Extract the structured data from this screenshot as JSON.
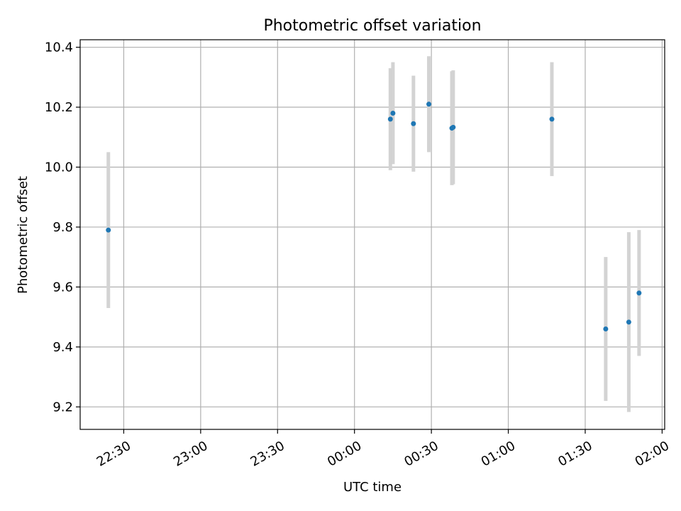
{
  "chart_data": {
    "type": "scatter",
    "title": "Photometric offset variation",
    "xlabel": "UTC time",
    "ylabel": "Photometric offset",
    "x_ticks": [
      "22:30",
      "23:00",
      "23:30",
      "00:00",
      "00:30",
      "01:00",
      "01:30",
      "02:00"
    ],
    "y_ticks": [
      "9.2",
      "9.4",
      "9.6",
      "9.8",
      "10.0",
      "10.2",
      "10.4"
    ],
    "xlim": [
      "22:13",
      "02:01"
    ],
    "ylim": [
      9.125,
      10.425
    ],
    "grid": true,
    "colors": {
      "points": "#1f77b4",
      "error_bars": "#d3d3d3",
      "grid": "#b0b0b0"
    },
    "points": [
      {
        "x": "22:24",
        "y": 9.79,
        "yerr": 0.26
      },
      {
        "x": "00:14",
        "y": 10.16,
        "yerr": 0.17
      },
      {
        "x": "00:15",
        "y": 10.18,
        "yerr": 0.17
      },
      {
        "x": "00:23",
        "y": 10.145,
        "yerr": 0.16
      },
      {
        "x": "00:29",
        "y": 10.21,
        "yerr": 0.16
      },
      {
        "x": "00:38",
        "y": 10.13,
        "yerr": 0.19
      },
      {
        "x": "00:38.5",
        "y": 10.133,
        "yerr": 0.19
      },
      {
        "x": "01:17",
        "y": 10.16,
        "yerr": 0.19
      },
      {
        "x": "01:38",
        "y": 9.46,
        "yerr": 0.24
      },
      {
        "x": "01:47",
        "y": 9.483,
        "yerr": 0.3
      },
      {
        "x": "01:51",
        "y": 9.58,
        "yerr": 0.21
      }
    ]
  }
}
